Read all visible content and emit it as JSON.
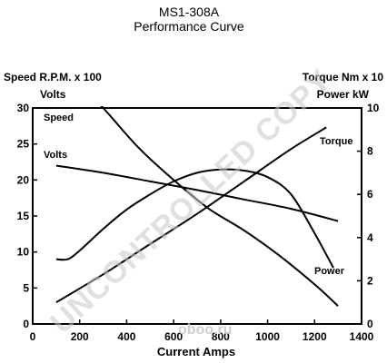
{
  "chart_data": {
    "type": "line",
    "title": "MS1-308A",
    "subtitle": "Performance Curve",
    "xlabel": "Current Amps",
    "left_axis_labels": [
      "Speed R.P.M. x 100",
      "Volts"
    ],
    "right_axis_labels": [
      "Torque Nm x 10",
      "Power kW"
    ],
    "x_ticks": [
      "0",
      "200",
      "400",
      "600",
      "800",
      "1000",
      "1200",
      "1400"
    ],
    "y_left_ticks": [
      "0",
      "5",
      "10",
      "15",
      "20",
      "25",
      "30"
    ],
    "y_right_ticks": [
      "0",
      "2",
      "4",
      "6",
      "8",
      "10"
    ],
    "xlim": [
      0,
      1400
    ],
    "ylim_left": [
      0,
      30
    ],
    "ylim_right": [
      0,
      10
    ],
    "grid": false,
    "series": [
      {
        "name": "Speed",
        "axis": "left",
        "x": [
          150,
          300,
          450,
          600,
          750,
          900,
          1050,
          1200,
          1300
        ],
        "y": [
          35,
          30,
          24.5,
          20,
          16,
          13,
          9.5,
          5.5,
          2.5
        ]
      },
      {
        "name": "Volts",
        "axis": "left",
        "x": [
          100,
          300,
          500,
          700,
          900,
          1100,
          1300
        ],
        "y": [
          22,
          21,
          19.8,
          18.6,
          17.3,
          16,
          14.3
        ]
      },
      {
        "name": "Torque",
        "axis": "right",
        "x": [
          100,
          300,
          500,
          700,
          900,
          1100,
          1250
        ],
        "y": [
          1.0,
          2.3,
          3.7,
          5.1,
          6.6,
          8.1,
          9.1
        ]
      },
      {
        "name": "Power",
        "axis": "right",
        "x": [
          100,
          150,
          200,
          300,
          400,
          500,
          600,
          700,
          800,
          900,
          1000,
          1100,
          1200,
          1280
        ],
        "y": [
          3.0,
          3.0,
          3.4,
          4.4,
          5.3,
          6.0,
          6.6,
          7.0,
          7.15,
          7.1,
          6.8,
          6.0,
          4.2,
          2.6
        ]
      }
    ]
  },
  "watermark": {
    "text": "UNCONTROLLED COPY",
    "brand": "oboo.ru"
  }
}
